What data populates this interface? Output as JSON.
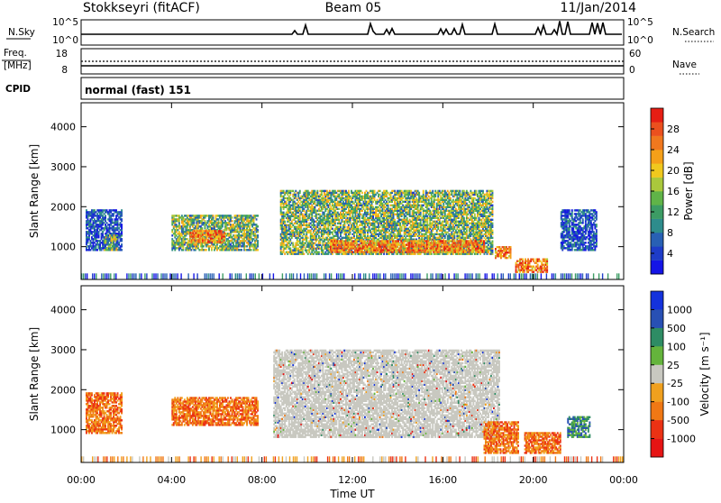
{
  "header": {
    "station": "Stokkseyri (fitACF)",
    "beam": "Beam 05",
    "date": "11/Jan/2014"
  },
  "summary": {
    "nsky_label": "N.Sky",
    "nsky_ticks": [
      "10^5",
      "10^0"
    ],
    "nsearch_label": "N.Search",
    "nsearch_ticks": [
      "10^5",
      "10^0"
    ],
    "freq_label_1": "Freq.",
    "freq_label_2": "[MHz]",
    "freq_ticks": [
      "18",
      "8"
    ],
    "nave_label": "Nave",
    "nave_ticks": [
      "60",
      "0"
    ],
    "cpid_label": "CPID",
    "cpid_value": "normal (fast) 151"
  },
  "chart_data": [
    {
      "type": "heatmap",
      "title": "",
      "xlabel": "",
      "ylabel": "Slant Range [km]",
      "xlim": [
        0,
        24
      ],
      "ylim": [
        180,
        4600
      ],
      "x_ticks": [
        0,
        4,
        8,
        12,
        16,
        20,
        24
      ],
      "y_ticks": [
        1000,
        2000,
        3000,
        4000
      ],
      "colorbar": {
        "label": "Power [dB]",
        "ticks": [
          "4",
          "8",
          "12",
          "16",
          "20",
          "24",
          "28"
        ],
        "colors": [
          "#1414e6",
          "#1e3cc8",
          "#2860b4",
          "#2e8c8c",
          "#3c9c64",
          "#60b448",
          "#aac83c",
          "#f0c81e",
          "#f5a019",
          "#f0781e",
          "#eb501e",
          "#e61e14"
        ]
      },
      "regions": [
        {
          "t_start": 0.2,
          "t_end": 1.8,
          "range_min": 900,
          "range_max": 1900,
          "level": "low"
        },
        {
          "t_start": 1.0,
          "t_end": 1.6,
          "range_min": 900,
          "range_max": 1300,
          "level": "mid"
        },
        {
          "t_start": 4.0,
          "t_end": 7.8,
          "range_min": 900,
          "range_max": 1800,
          "level": "mid"
        },
        {
          "t_start": 4.8,
          "t_end": 6.3,
          "range_min": 1100,
          "range_max": 1400,
          "level": "high"
        },
        {
          "t_start": 8.8,
          "t_end": 18.2,
          "range_min": 800,
          "range_max": 2400,
          "level": "mid"
        },
        {
          "t_start": 11.0,
          "t_end": 17.8,
          "range_min": 850,
          "range_max": 1150,
          "level": "high"
        },
        {
          "t_start": 18.3,
          "t_end": 19.0,
          "range_min": 700,
          "range_max": 1000,
          "level": "high"
        },
        {
          "t_start": 19.2,
          "t_end": 20.6,
          "range_min": 350,
          "range_max": 700,
          "level": "high"
        },
        {
          "t_start": 21.2,
          "t_end": 22.8,
          "range_min": 900,
          "range_max": 1900,
          "level": "low"
        }
      ]
    },
    {
      "type": "heatmap",
      "title": "",
      "xlabel": "Time UT",
      "ylabel": "Slant Range [km]",
      "xlim": [
        0,
        24
      ],
      "ylim": [
        180,
        4600
      ],
      "x_ticks": [
        0,
        4,
        8,
        12,
        16,
        20,
        24
      ],
      "x_tick_labels": [
        "00:00",
        "04:00",
        "08:00",
        "12:00",
        "16:00",
        "20:00",
        "00:00"
      ],
      "y_ticks": [
        1000,
        2000,
        3000,
        4000
      ],
      "colorbar": {
        "label": "Velocity [m s⁻¹]",
        "ticks": [
          "1000",
          "500",
          "100",
          "25",
          "-25",
          "-100",
          "-500",
          "-1000"
        ],
        "colors": [
          "#1432dc",
          "#2850b4",
          "#2e8c64",
          "#64b43c",
          "#c8c8c0",
          "#f0a01e",
          "#f07814",
          "#eb3214",
          "#e61414"
        ]
      },
      "regions": [
        {
          "t_start": 0.2,
          "t_end": 1.8,
          "range_min": 900,
          "range_max": 1900,
          "level": "away"
        },
        {
          "t_start": 4.0,
          "t_end": 7.8,
          "range_min": 1100,
          "range_max": 1800,
          "level": "away"
        },
        {
          "t_start": 8.5,
          "t_end": 18.5,
          "range_min": 800,
          "range_max": 3000,
          "level": "zero"
        },
        {
          "t_start": 17.8,
          "t_end": 19.3,
          "range_min": 400,
          "range_max": 1200,
          "level": "away"
        },
        {
          "t_start": 19.6,
          "t_end": 21.2,
          "range_min": 400,
          "range_max": 900,
          "level": "away"
        },
        {
          "t_start": 21.5,
          "t_end": 22.5,
          "range_min": 800,
          "range_max": 1300,
          "level": "toward"
        }
      ]
    }
  ]
}
